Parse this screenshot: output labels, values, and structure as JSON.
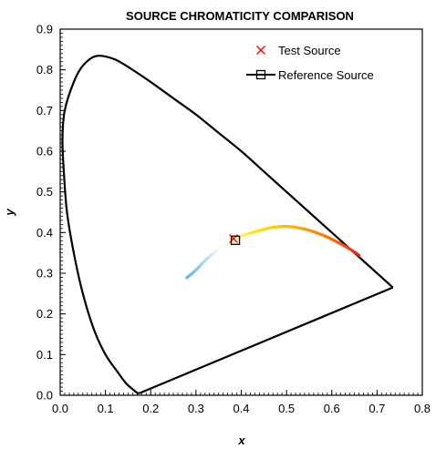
{
  "chart_data": {
    "type": "scatter",
    "title": "SOURCE CHROMATICITY COMPARISON",
    "xlabel": "x",
    "ylabel": "y",
    "xlim": [
      0.0,
      0.8
    ],
    "ylim": [
      0.0,
      0.9
    ],
    "x_ticks": [
      "0.0",
      "0.1",
      "0.2",
      "0.3",
      "0.4",
      "0.5",
      "0.6",
      "0.7",
      "0.8"
    ],
    "y_ticks": [
      "0.0",
      "0.1",
      "0.2",
      "0.3",
      "0.4",
      "0.5",
      "0.6",
      "0.7",
      "0.8",
      "0.9"
    ],
    "grid": false,
    "legend_position": "top-right",
    "spectral_locus": [
      [
        0.175,
        0.005
      ],
      [
        0.17,
        0.006
      ],
      [
        0.16,
        0.015
      ],
      [
        0.145,
        0.03
      ],
      [
        0.125,
        0.06
      ],
      [
        0.1,
        0.1
      ],
      [
        0.075,
        0.16
      ],
      [
        0.05,
        0.25
      ],
      [
        0.03,
        0.35
      ],
      [
        0.015,
        0.45
      ],
      [
        0.008,
        0.55
      ],
      [
        0.005,
        0.63
      ],
      [
        0.01,
        0.7
      ],
      [
        0.03,
        0.77
      ],
      [
        0.05,
        0.81
      ],
      [
        0.08,
        0.834
      ],
      [
        0.12,
        0.826
      ],
      [
        0.16,
        0.8
      ],
      [
        0.2,
        0.77
      ],
      [
        0.25,
        0.73
      ],
      [
        0.3,
        0.69
      ],
      [
        0.35,
        0.645
      ],
      [
        0.4,
        0.6
      ],
      [
        0.45,
        0.55
      ],
      [
        0.5,
        0.5
      ],
      [
        0.55,
        0.45
      ],
      [
        0.6,
        0.4
      ],
      [
        0.65,
        0.35
      ],
      [
        0.7,
        0.3
      ],
      [
        0.735,
        0.265
      ]
    ],
    "purple_line": [
      [
        0.735,
        0.265
      ],
      [
        0.175,
        0.005
      ]
    ],
    "planckian_locus": [
      [
        0.28,
        0.289
      ],
      [
        0.3,
        0.308
      ],
      [
        0.32,
        0.331
      ],
      [
        0.345,
        0.354
      ],
      [
        0.37,
        0.37
      ],
      [
        0.39,
        0.385
      ],
      [
        0.41,
        0.395
      ],
      [
        0.44,
        0.405
      ],
      [
        0.47,
        0.413
      ],
      [
        0.5,
        0.415
      ],
      [
        0.53,
        0.411
      ],
      [
        0.56,
        0.402
      ],
      [
        0.59,
        0.389
      ],
      [
        0.62,
        0.372
      ],
      [
        0.645,
        0.356
      ],
      [
        0.66,
        0.344
      ]
    ],
    "planckian_gradient": [
      "#4fb8ea",
      "#ffffff",
      "#ffe600",
      "#ffb000",
      "#ff6a00",
      "#e8201a"
    ],
    "series": [
      {
        "name": "Test Source",
        "marker": "x",
        "color": "#ff0000",
        "points": [
          [
            0.383,
            0.385
          ]
        ]
      },
      {
        "name": "Reference Source",
        "marker": "square",
        "color": "#000000",
        "points": [
          [
            0.387,
            0.381
          ]
        ]
      }
    ]
  }
}
